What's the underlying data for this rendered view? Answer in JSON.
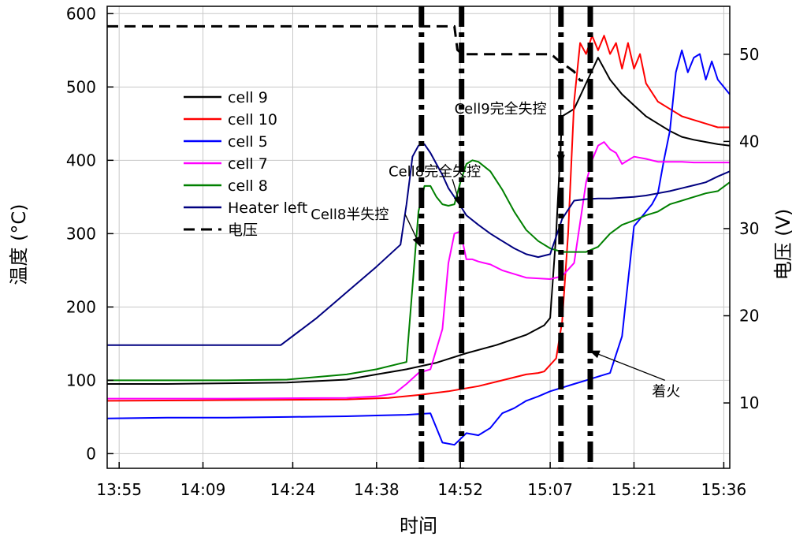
{
  "chart_data": {
    "type": "line",
    "xlabel": "时间",
    "ylabel": "温度 (°C)",
    "y2label": "电压 (V)",
    "xlim": [
      0,
      104
    ],
    "x_ticks": [
      {
        "at": 2,
        "label": "13:55"
      },
      {
        "at": 16,
        "label": "14:09"
      },
      {
        "at": 31,
        "label": "14:24"
      },
      {
        "at": 45,
        "label": "14:38"
      },
      {
        "at": 59,
        "label": "14:52"
      },
      {
        "at": 74,
        "label": "15:07"
      },
      {
        "at": 88,
        "label": "15:21"
      },
      {
        "at": 103,
        "label": "15:36"
      }
    ],
    "ylim": [
      -20,
      610
    ],
    "y_ticks": [
      0,
      100,
      200,
      300,
      400,
      500,
      600
    ],
    "y2lim": [
      2.5,
      55.5
    ],
    "y2_ticks": [
      10,
      20,
      30,
      40,
      50
    ],
    "grid": true,
    "legend": "upper-left",
    "series": [
      {
        "name": "cell 9",
        "color": "#000000",
        "axis": "left",
        "x": [
          0,
          10,
          20,
          30,
          40,
          45,
          50,
          55,
          60,
          65,
          70,
          73,
          74,
          75,
          76,
          78,
          80,
          82,
          84,
          86,
          88,
          90,
          92,
          94,
          96,
          98,
          100,
          102,
          104
        ],
        "y": [
          95,
          95,
          96,
          97,
          101,
          108,
          115,
          124,
          137,
          148,
          162,
          175,
          185,
          300,
          460,
          470,
          505,
          540,
          510,
          490,
          475,
          460,
          450,
          440,
          432,
          428,
          425,
          422,
          420
        ]
      },
      {
        "name": "cell 10",
        "color": "#ff0000",
        "axis": "left",
        "x": [
          0,
          20,
          40,
          47,
          52,
          57,
          62,
          67,
          70,
          72,
          73,
          75,
          76,
          77,
          78,
          79,
          80,
          81,
          82,
          83,
          84,
          85,
          86,
          87,
          88,
          89,
          90,
          92,
          94,
          96,
          98,
          100,
          102,
          104
        ],
        "y": [
          72,
          73,
          74,
          76,
          80,
          85,
          92,
          102,
          108,
          110,
          112,
          130,
          180,
          300,
          480,
          560,
          545,
          570,
          550,
          570,
          545,
          560,
          525,
          560,
          525,
          545,
          505,
          480,
          470,
          460,
          455,
          450,
          445,
          445
        ]
      },
      {
        "name": "cell 5",
        "color": "#0000ff",
        "axis": "left",
        "x": [
          0,
          10,
          20,
          30,
          40,
          45,
          50,
          54,
          55,
          56,
          58,
          60,
          62,
          64,
          66,
          68,
          70,
          72,
          74,
          76,
          78,
          80,
          82,
          84,
          86,
          88,
          89,
          90,
          91,
          92,
          93,
          94,
          95,
          96,
          97,
          98,
          99,
          100,
          101,
          102,
          103,
          104
        ],
        "y": [
          48,
          49,
          49,
          50,
          51,
          52,
          53,
          55,
          35,
          15,
          12,
          28,
          25,
          35,
          55,
          62,
          72,
          78,
          85,
          90,
          95,
          100,
          105,
          110,
          160,
          310,
          320,
          330,
          340,
          355,
          400,
          440,
          520,
          550,
          520,
          540,
          545,
          510,
          535,
          510,
          500,
          490
        ]
      },
      {
        "name": "cell 7",
        "color": "#ff00ff",
        "axis": "left",
        "x": [
          0,
          20,
          40,
          45,
          48,
          50,
          52,
          54,
          56,
          57,
          58,
          59,
          60,
          61,
          62,
          63,
          64,
          66,
          70,
          74,
          76,
          78,
          80,
          81,
          82,
          83,
          84,
          85,
          86,
          87,
          88,
          90,
          92,
          94,
          96,
          98,
          100,
          102,
          104
        ],
        "y": [
          75,
          75,
          76,
          78,
          82,
          95,
          110,
          115,
          170,
          260,
          300,
          303,
          265,
          265,
          262,
          260,
          258,
          250,
          240,
          238,
          242,
          260,
          370,
          400,
          420,
          425,
          415,
          410,
          395,
          400,
          405,
          402,
          398,
          398,
          398,
          397,
          397,
          397,
          397
        ]
      },
      {
        "name": "cell 8",
        "color": "#008000",
        "axis": "left",
        "x": [
          0,
          10,
          20,
          30,
          40,
          45,
          50,
          52,
          53,
          54,
          55,
          56,
          57,
          58,
          59,
          60,
          61,
          62,
          64,
          66,
          68,
          70,
          72,
          74,
          76,
          78,
          80,
          82,
          84,
          86,
          88,
          90,
          92,
          94,
          96,
          98,
          100,
          102,
          104
        ],
        "y": [
          100,
          100,
          100,
          101,
          108,
          115,
          125,
          330,
          365,
          365,
          350,
          340,
          338,
          340,
          370,
          395,
          400,
          398,
          385,
          360,
          330,
          305,
          290,
          280,
          275,
          275,
          275,
          282,
          300,
          312,
          318,
          325,
          330,
          340,
          345,
          350,
          355,
          358,
          370
        ]
      },
      {
        "name": "Heater left",
        "color": "#000080",
        "axis": "left",
        "x": [
          0,
          10,
          20,
          29,
          35,
          40,
          45,
          49,
          50,
          51,
          52,
          53,
          54,
          55,
          56,
          57,
          58,
          59,
          60,
          62,
          64,
          66,
          68,
          70,
          72,
          74,
          76,
          78,
          80,
          82,
          84,
          86,
          88,
          90,
          92,
          94,
          96,
          98,
          100,
          102,
          104
        ],
        "y": [
          148,
          148,
          148,
          148,
          185,
          220,
          255,
          285,
          340,
          405,
          420,
          422,
          410,
          395,
          380,
          362,
          350,
          338,
          325,
          312,
          300,
          290,
          280,
          272,
          268,
          272,
          320,
          345,
          347,
          348,
          348,
          349,
          350,
          352,
          355,
          358,
          362,
          366,
          370,
          378,
          385
        ]
      },
      {
        "name": "电压",
        "color": "#000000",
        "axis": "right",
        "dashed": true,
        "x": [
          0,
          58,
          58.5,
          59,
          60,
          74,
          74.5,
          75,
          76,
          78,
          79,
          79.5,
          79.6,
          104
        ],
        "y": [
          53.2,
          53.2,
          50.5,
          50.2,
          50.0,
          50.0,
          49.8,
          49.5,
          49.0,
          48.0,
          47.0,
          47.0,
          null,
          null
        ]
      }
    ],
    "control_lines_x": [
      52.5,
      59.2,
      75.8,
      80.7
    ],
    "annotations": [
      {
        "text": "Cell8半失控",
        "target_x": 52.3,
        "target_y": 283,
        "text_x": 34,
        "text_y": 326
      },
      {
        "text": "Cell8完全失控",
        "target_x": 59,
        "target_y": 338,
        "text_x": 47,
        "text_y": 385
      },
      {
        "text": "Cell9完全失控",
        "target_x": 75.8,
        "target_y": 395,
        "text_x": 58,
        "text_y": 470
      },
      {
        "text": "着火",
        "target_x": 80.7,
        "target_y": 140,
        "text_x": 91,
        "text_y": 85
      }
    ]
  }
}
